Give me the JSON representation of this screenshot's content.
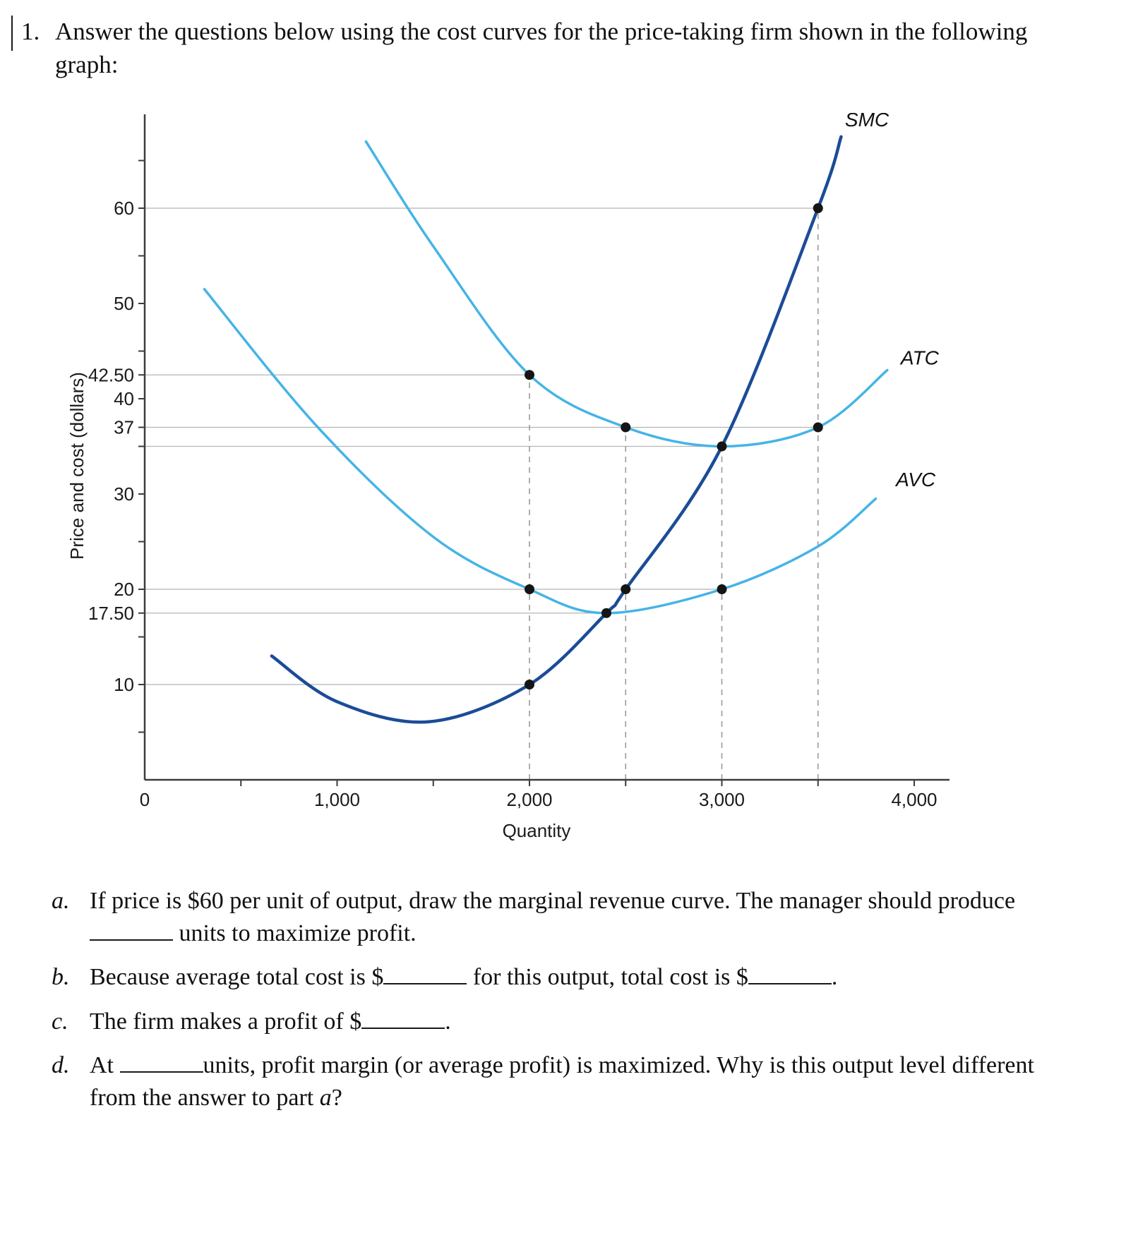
{
  "page": {
    "question_number": "1.",
    "question_intro": "Answer the questions below using the cost curves for the price-taking firm shown in the following graph:"
  },
  "chart_data": {
    "type": "line",
    "title": "",
    "xlabel": "Quantity",
    "ylabel": "Price and cost (dollars)",
    "xlim": [
      0,
      4200
    ],
    "ylim": [
      0,
      70
    ],
    "grid": "partial-horizontal-reference-lines",
    "legend_position": "labels-at-curve-ends",
    "x_tick_labels": [
      {
        "v": 0,
        "label": "0"
      },
      {
        "v": 1000,
        "label": "1,000"
      },
      {
        "v": 2000,
        "label": "2,000"
      },
      {
        "v": 3000,
        "label": "3,000"
      },
      {
        "v": 4000,
        "label": "4,000"
      }
    ],
    "y_tick_labels": [
      {
        "v": 60,
        "label": "60"
      },
      {
        "v": 50,
        "label": "50"
      },
      {
        "v": 42.5,
        "label": "42.50"
      },
      {
        "v": 40,
        "label": "40"
      },
      {
        "v": 37,
        "label": "37"
      },
      {
        "v": 30,
        "label": "30"
      },
      {
        "v": 20,
        "label": "20"
      },
      {
        "v": 17.5,
        "label": "17.50"
      },
      {
        "v": 10,
        "label": "10"
      }
    ],
    "x_ticks_all": [
      500,
      1000,
      1500,
      2000,
      2500,
      3000,
      3500,
      4000
    ],
    "y_ticks_all": [
      5,
      10,
      15,
      17.5,
      20,
      25,
      30,
      35,
      37,
      40,
      42.5,
      45,
      50,
      55,
      60,
      65
    ],
    "series": [
      {
        "name": "SMC",
        "color": "#1b4c97",
        "width": 4.5,
        "points": [
          [
            660,
            13
          ],
          [
            1000,
            8.2
          ],
          [
            1480,
            6.1
          ],
          [
            2000,
            10
          ],
          [
            2400,
            17.5
          ],
          [
            2500,
            20
          ],
          [
            3000,
            35
          ],
          [
            3500,
            60
          ],
          [
            3620,
            67.5
          ]
        ]
      },
      {
        "name": "ATC",
        "color": "#45b4e6",
        "width": 3.5,
        "points": [
          [
            1150,
            67
          ],
          [
            1500,
            56
          ],
          [
            2000,
            42.5
          ],
          [
            2500,
            37
          ],
          [
            3000,
            35
          ],
          [
            3500,
            37
          ],
          [
            3860,
            43
          ]
        ]
      },
      {
        "name": "AVC",
        "color": "#45b4e6",
        "width": 3.5,
        "points": [
          [
            310,
            51.5
          ],
          [
            900,
            37
          ],
          [
            1500,
            25.5
          ],
          [
            2000,
            20
          ],
          [
            2400,
            17.5
          ],
          [
            3000,
            20
          ],
          [
            3500,
            24.5
          ],
          [
            3800,
            29.5
          ]
        ]
      }
    ],
    "markers": [
      {
        "x": 2000,
        "y": 42.5
      },
      {
        "x": 2000,
        "y": 20
      },
      {
        "x": 2000,
        "y": 10
      },
      {
        "x": 2400,
        "y": 17.5
      },
      {
        "x": 2500,
        "y": 37
      },
      {
        "x": 2500,
        "y": 20
      },
      {
        "x": 3000,
        "y": 35
      },
      {
        "x": 3000,
        "y": 20
      },
      {
        "x": 3500,
        "y": 60
      },
      {
        "x": 3500,
        "y": 37
      }
    ],
    "dashed_vlines": [
      {
        "x": 2000,
        "y_top": 42.5
      },
      {
        "x": 2500,
        "y_top": 37
      },
      {
        "x": 3000,
        "y_top": 35
      },
      {
        "x": 3500,
        "y_top": 60
      }
    ],
    "ref_lines": [
      {
        "y": 60,
        "x_end": 3500
      },
      {
        "y": 42.5,
        "x_end": 2000
      },
      {
        "y": 37,
        "x_end": 3500
      },
      {
        "y": 35,
        "x_end": 3000
      },
      {
        "y": 20,
        "x_end": 3000
      },
      {
        "y": 17.5,
        "x_end": 2400
      },
      {
        "y": 10,
        "x_end": 2000
      }
    ],
    "curve_labels": [
      {
        "text": "SMC",
        "x": 3640,
        "y": 68.6
      },
      {
        "text": "ATC",
        "x": 3930,
        "y": 43.6
      },
      {
        "text": "AVC",
        "x": 3905,
        "y": 30.8
      }
    ]
  },
  "questions": [
    {
      "label": "a.",
      "segments": [
        {
          "t": "If price is $60 per unit of output, draw the marginal revenue curve. The manager should produce "
        },
        {
          "b": true
        },
        {
          "t": " units to maximize profit."
        }
      ]
    },
    {
      "label": "b.",
      "segments": [
        {
          "t": "Because average total cost is $"
        },
        {
          "b": true
        },
        {
          "t": " for this output, total cost is $"
        },
        {
          "b": true
        },
        {
          "t": "."
        }
      ]
    },
    {
      "label": "c.",
      "segments": [
        {
          "t": "The firm makes a profit of $"
        },
        {
          "b": true
        },
        {
          "t": "."
        }
      ]
    },
    {
      "label": "d.",
      "segments": [
        {
          "t": "At "
        },
        {
          "b": true
        },
        {
          "t": "units, profit margin (or average profit) is maximized. Why is this output level different from the answer to part "
        },
        {
          "t": "a",
          "i": true
        },
        {
          "t": "?"
        }
      ]
    }
  ]
}
